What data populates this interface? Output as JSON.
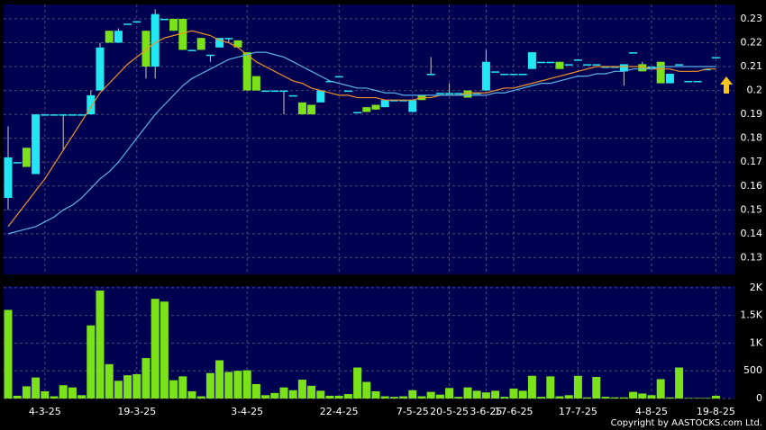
{
  "chart_data": [
    {
      "type": "candlestick",
      "categories": [
        null,
        null,
        null,
        null,
        "4-3-25",
        null,
        null,
        null,
        null,
        null,
        null,
        null,
        null,
        null,
        "19-3-25",
        null,
        null,
        null,
        null,
        null,
        null,
        null,
        null,
        null,
        null,
        null,
        "3-4-25",
        null,
        null,
        null,
        null,
        null,
        null,
        null,
        null,
        null,
        "22-4-25",
        null,
        null,
        null,
        null,
        null,
        null,
        null,
        "7-5-25",
        null,
        null,
        null,
        "20-5-25",
        null,
        null,
        null,
        "3-6-25",
        null,
        null,
        "17-6-25",
        null,
        null,
        null,
        null,
        null,
        null,
        "17-7-25",
        null,
        null,
        null,
        null,
        null,
        null,
        null,
        "4-8-25",
        null,
        null,
        null,
        null,
        null,
        null,
        "19-8-25"
      ],
      "open": [
        0.155,
        0.17,
        0.176,
        0.165,
        0.19,
        0.19,
        0.19,
        0.19,
        0.19,
        0.19,
        0.2,
        0.225,
        0.22,
        0.228,
        0.229,
        0.225,
        0.21,
        0.23,
        0.23,
        0.23,
        0.217,
        0.222,
        0.215,
        0.218,
        0.222,
        0.221,
        0.216,
        0.206,
        0.2,
        0.2,
        0.2,
        0.198,
        0.195,
        0.194,
        0.195,
        0.204,
        0.206,
        0.2,
        0.191,
        0.193,
        0.194,
        0.193,
        0.196,
        0.196,
        0.191,
        0.198,
        0.207,
        0.199,
        0.199,
        0.199,
        0.2,
        0.199,
        0.2,
        0.208,
        0.207,
        0.207,
        0.207,
        0.209,
        0.212,
        0.212,
        0.212,
        0.211,
        0.213,
        0.211,
        0.211,
        0.21,
        0.21,
        0.208,
        0.216,
        0.211,
        0.21,
        0.212,
        0.203,
        0.211,
        0.204,
        0.204,
        0.209,
        0.214
      ],
      "high": [
        0.185,
        0.17,
        0.176,
        0.19,
        0.19,
        0.19,
        0.19,
        0.19,
        0.19,
        0.2,
        0.22,
        0.225,
        0.226,
        0.228,
        0.229,
        0.225,
        0.234,
        0.23,
        0.23,
        0.23,
        0.217,
        0.222,
        0.215,
        0.222,
        0.222,
        0.221,
        0.216,
        0.206,
        0.2,
        0.2,
        0.2,
        0.198,
        0.195,
        0.194,
        0.2,
        0.204,
        0.206,
        0.2,
        0.191,
        0.193,
        0.194,
        0.196,
        0.196,
        0.196,
        0.196,
        0.198,
        0.214,
        0.199,
        0.203,
        0.199,
        0.2,
        0.199,
        0.217,
        0.208,
        0.207,
        0.207,
        0.207,
        0.216,
        0.212,
        0.212,
        0.212,
        0.211,
        0.213,
        0.211,
        0.211,
        0.21,
        0.21,
        0.211,
        0.216,
        0.212,
        0.21,
        0.212,
        0.207,
        0.211,
        0.204,
        0.204,
        0.209,
        0.214
      ],
      "low": [
        0.15,
        0.17,
        0.168,
        0.165,
        0.19,
        0.19,
        0.175,
        0.19,
        0.19,
        0.19,
        0.2,
        0.22,
        0.22,
        0.228,
        0.229,
        0.205,
        0.205,
        0.23,
        0.225,
        0.217,
        0.217,
        0.217,
        0.212,
        0.218,
        0.22,
        0.218,
        0.2,
        0.2,
        0.2,
        0.2,
        0.19,
        0.198,
        0.19,
        0.19,
        0.195,
        0.204,
        0.206,
        0.2,
        0.191,
        0.191,
        0.192,
        0.193,
        0.196,
        0.196,
        0.191,
        0.196,
        0.207,
        0.199,
        0.199,
        0.199,
        0.197,
        0.199,
        0.2,
        0.208,
        0.207,
        0.207,
        0.207,
        0.209,
        0.212,
        0.212,
        0.209,
        0.211,
        0.213,
        0.211,
        0.211,
        0.21,
        0.21,
        0.202,
        0.216,
        0.208,
        0.21,
        0.203,
        0.203,
        0.211,
        0.204,
        0.204,
        0.209,
        0.214
      ],
      "close": [
        0.172,
        0.17,
        0.168,
        0.19,
        0.19,
        0.19,
        0.19,
        0.19,
        0.19,
        0.198,
        0.218,
        0.22,
        0.225,
        0.228,
        0.229,
        0.21,
        0.232,
        0.23,
        0.225,
        0.217,
        0.217,
        0.217,
        0.215,
        0.222,
        0.222,
        0.218,
        0.2,
        0.2,
        0.2,
        0.2,
        0.2,
        0.198,
        0.19,
        0.19,
        0.2,
        0.204,
        0.206,
        0.2,
        0.191,
        0.191,
        0.192,
        0.196,
        0.196,
        0.196,
        0.196,
        0.196,
        0.207,
        0.199,
        0.199,
        0.199,
        0.197,
        0.199,
        0.212,
        0.208,
        0.207,
        0.207,
        0.207,
        0.216,
        0.212,
        0.212,
        0.209,
        0.211,
        0.213,
        0.211,
        0.211,
        0.21,
        0.21,
        0.211,
        0.216,
        0.208,
        0.21,
        0.203,
        0.207,
        0.211,
        0.204,
        0.204,
        0.209,
        0.214
      ],
      "up_color": "#22e6f0",
      "down_color": "#7be21a",
      "ma": [
        {
          "color": "#f0902a",
          "values": [
            0.143,
            0.148,
            0.153,
            0.158,
            0.163,
            0.169,
            0.175,
            0.181,
            0.187,
            0.193,
            0.199,
            0.203,
            0.207,
            0.211,
            0.214,
            0.217,
            0.22,
            0.222,
            0.223,
            0.224,
            0.225,
            0.224,
            0.223,
            0.221,
            0.22,
            0.218,
            0.215,
            0.212,
            0.21,
            0.208,
            0.206,
            0.204,
            0.203,
            0.201,
            0.2,
            0.199,
            0.198,
            0.198,
            0.197,
            0.197,
            0.197,
            0.196,
            0.196,
            0.196,
            0.196,
            0.197,
            0.197,
            0.198,
            0.198,
            0.198,
            0.199,
            0.199,
            0.199,
            0.2,
            0.201,
            0.201,
            0.202,
            0.203,
            0.204,
            0.205,
            0.206,
            0.207,
            0.208,
            0.209,
            0.21,
            0.21,
            0.21,
            0.21,
            0.21,
            0.21,
            0.209,
            0.209,
            0.209,
            0.208,
            0.208,
            0.208,
            0.209,
            0.209
          ]
        },
        {
          "color": "#5ab4e8",
          "values": [
            0.14,
            0.141,
            0.142,
            0.143,
            0.145,
            0.147,
            0.15,
            0.152,
            0.155,
            0.159,
            0.163,
            0.166,
            0.17,
            0.175,
            0.18,
            0.185,
            0.19,
            0.194,
            0.198,
            0.202,
            0.205,
            0.207,
            0.209,
            0.211,
            0.213,
            0.214,
            0.215,
            0.216,
            0.216,
            0.215,
            0.214,
            0.212,
            0.21,
            0.208,
            0.206,
            0.204,
            0.203,
            0.202,
            0.201,
            0.201,
            0.2,
            0.199,
            0.199,
            0.198,
            0.198,
            0.198,
            0.198,
            0.198,
            0.198,
            0.198,
            0.198,
            0.198,
            0.198,
            0.199,
            0.199,
            0.2,
            0.201,
            0.202,
            0.203,
            0.203,
            0.204,
            0.205,
            0.206,
            0.206,
            0.207,
            0.207,
            0.208,
            0.208,
            0.209,
            0.209,
            0.209,
            0.21,
            0.21,
            0.21,
            0.21,
            0.21,
            0.21,
            0.21
          ]
        }
      ],
      "ylim": [
        0.123,
        0.236
      ],
      "yticks": [
        0.13,
        0.14,
        0.15,
        0.16,
        0.17,
        0.18,
        0.19,
        0.2,
        0.21,
        0.22,
        0.23
      ],
      "grid": true
    },
    {
      "type": "bar",
      "values": [
        1600,
        50,
        220,
        380,
        130,
        40,
        240,
        200,
        60,
        1320,
        1950,
        620,
        320,
        420,
        440,
        730,
        1800,
        1750,
        330,
        400,
        130,
        40,
        460,
        690,
        480,
        500,
        510,
        260,
        60,
        100,
        200,
        150,
        340,
        230,
        140,
        50,
        50,
        80,
        560,
        300,
        130,
        40,
        30,
        40,
        150,
        40,
        120,
        70,
        190,
        30,
        200,
        140,
        110,
        140,
        30,
        180,
        140,
        410,
        30,
        400,
        40,
        60,
        410,
        20,
        390,
        30,
        20,
        20,
        120,
        90,
        60,
        350,
        20,
        560,
        10,
        10,
        10,
        50
      ],
      "color": "#7be21a",
      "ylim": [
        0,
        2030
      ],
      "yticks": [
        0,
        500,
        {
          "value": 1000,
          "label": "1K"
        },
        {
          "value": 1500,
          "label": "1.5K"
        },
        {
          "value": 2000,
          "label": "2K"
        }
      ],
      "grid": true
    }
  ],
  "footer": "Copyright by AASTOCKS.com Ltd."
}
